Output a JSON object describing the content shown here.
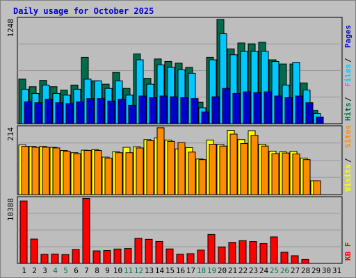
{
  "title": "Daily usage for October 2025",
  "colors": {
    "background": "#c0c0c0",
    "plot_background": "#bdbdbd",
    "gridline": "#999999",
    "hits": "#006b4d",
    "files": "#00c8ff",
    "pages": "#0000cc",
    "visits": "#ffff00",
    "sites": "#ff8c00",
    "kbytes": "#ff0000",
    "weekday_label": "#000000",
    "weekend_label": "#00774a"
  },
  "chart_data": [
    {
      "type": "bar",
      "panel": "hits_files_pages",
      "ymax_label": "1248",
      "ylim": [
        0,
        1248
      ],
      "grid": true,
      "categories": [
        "1",
        "2",
        "3",
        "4",
        "5",
        "6",
        "7",
        "8",
        "9",
        "10",
        "11",
        "12",
        "13",
        "14",
        "15",
        "16",
        "17",
        "18",
        "19",
        "20",
        "21",
        "22",
        "23",
        "24",
        "25",
        "26",
        "27",
        "28",
        "29",
        "30",
        "31"
      ],
      "legend": [
        {
          "label": "Hits",
          "color_key": "hits"
        },
        {
          "label": "Files",
          "color_key": "files"
        },
        {
          "label": "Pages",
          "color_key": "pages"
        }
      ],
      "series": [
        {
          "name": "Hits",
          "color_key": "hits",
          "values": [
            530,
            440,
            515,
            440,
            400,
            460,
            790,
            510,
            470,
            610,
            420,
            830,
            540,
            770,
            740,
            720,
            670,
            255,
            790,
            1240,
            890,
            960,
            950,
            970,
            760,
            710,
            710,
            485,
            160,
            null,
            null
          ]
        },
        {
          "name": "Files",
          "color_key": "files",
          "values": [
            410,
            360,
            460,
            360,
            340,
            410,
            530,
            510,
            420,
            510,
            340,
            760,
            470,
            700,
            670,
            640,
            600,
            190,
            760,
            1070,
            820,
            860,
            860,
            860,
            740,
            460,
            730,
            400,
            120,
            null,
            null
          ]
        },
        {
          "name": "Pages",
          "color_key": "pages",
          "values": [
            260,
            250,
            290,
            250,
            240,
            260,
            300,
            300,
            270,
            290,
            220,
            330,
            310,
            330,
            320,
            310,
            300,
            140,
            320,
            420,
            360,
            380,
            370,
            380,
            330,
            310,
            330,
            250,
            80,
            null,
            null
          ]
        }
      ]
    },
    {
      "type": "bar",
      "panel": "visits_sites",
      "ymax_label": "214",
      "ylim": [
        0,
        214
      ],
      "grid": true,
      "legend": [
        {
          "label": "Visits",
          "color_key": "visits"
        },
        {
          "label": "Sites",
          "color_key": "sites"
        }
      ],
      "series": [
        {
          "name": "Visits",
          "color_key": "visits",
          "values": [
            158,
            153,
            153,
            150,
            140,
            133,
            141,
            143,
            119,
            136,
            150,
            152,
            175,
            180,
            173,
            145,
            149,
            113,
            173,
            159,
            204,
            175,
            203,
            160,
            138,
            136,
            137,
            116,
            44,
            null,
            null
          ]
        },
        {
          "name": "Sites",
          "color_key": "sites",
          "values": [
            153,
            150,
            150,
            148,
            138,
            130,
            140,
            140,
            116,
            133,
            133,
            148,
            171,
            212,
            169,
            165,
            135,
            111,
            160,
            154,
            192,
            162,
            188,
            154,
            130,
            132,
            129,
            111,
            44,
            null,
            null
          ]
        }
      ]
    },
    {
      "type": "bar",
      "panel": "kbytes",
      "ymax_label": "10388",
      "ylim": [
        0,
        10388
      ],
      "grid": true,
      "legend": [
        {
          "label": "KB F",
          "color_key": "kbytes"
        }
      ],
      "series": [
        {
          "name": "KB F",
          "color_key": "kbytes",
          "values": [
            9930,
            3870,
            1440,
            1490,
            1400,
            2220,
            10340,
            1990,
            2040,
            2290,
            2360,
            3990,
            3830,
            3490,
            2300,
            1460,
            1550,
            2120,
            4600,
            2620,
            3350,
            3630,
            3470,
            3150,
            4210,
            1780,
            1220,
            620,
            null,
            null,
            null
          ]
        }
      ]
    }
  ],
  "x_axis": {
    "days": [
      "1",
      "2",
      "3",
      "4",
      "5",
      "6",
      "7",
      "8",
      "9",
      "10",
      "11",
      "12",
      "13",
      "14",
      "15",
      "16",
      "17",
      "18",
      "19",
      "20",
      "21",
      "22",
      "23",
      "24",
      "25",
      "26",
      "27",
      "28",
      "29",
      "30",
      "31"
    ],
    "weekend_days": [
      "4",
      "5",
      "11",
      "12",
      "18",
      "19",
      "25",
      "26"
    ]
  }
}
